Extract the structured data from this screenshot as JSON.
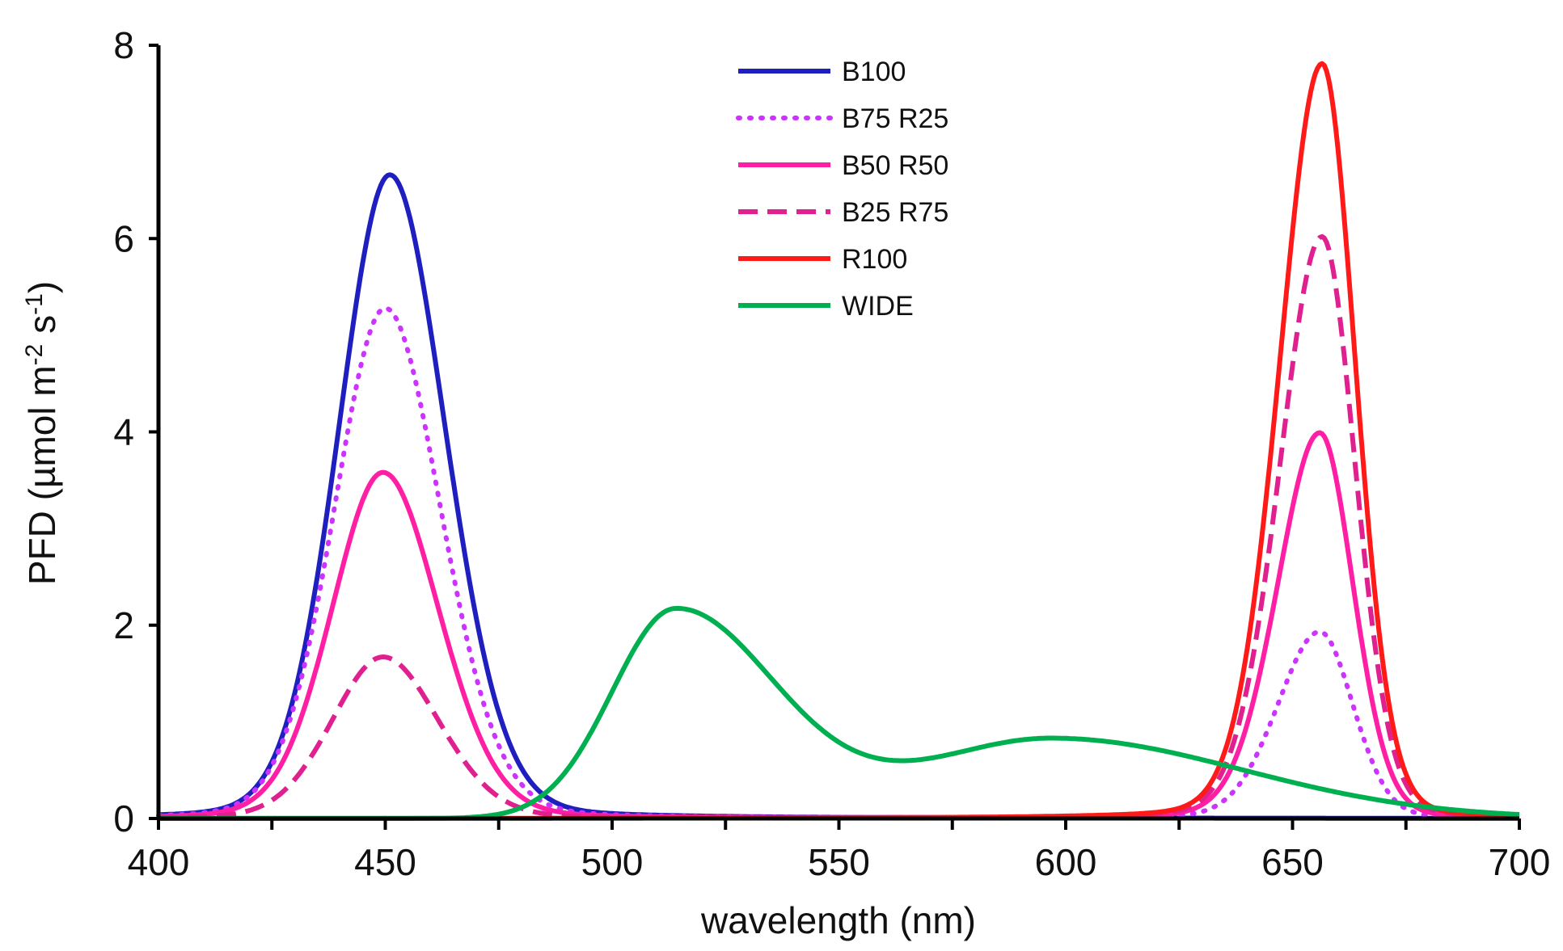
{
  "chart_data": {
    "type": "line",
    "title": "",
    "xlabel": "wavelength (nm)",
    "ylabel": "PFD (µmol m-2 s-1)",
    "ylabel_parts": {
      "base": "PFD (µmol m",
      "exp1": "-2",
      "mid": " s",
      "exp2": "-1",
      "end": ")"
    },
    "xlim": [
      400,
      700
    ],
    "ylim": [
      0,
      8
    ],
    "xticks": [
      400,
      450,
      500,
      550,
      600,
      650,
      700
    ],
    "xtick_labels": [
      "400",
      "450",
      "500",
      "550",
      "600",
      "650",
      "700"
    ],
    "yticks": [
      0,
      2,
      4,
      6,
      8
    ],
    "ytick_labels": [
      "0",
      "2",
      "4",
      "6",
      "8"
    ],
    "grid": false,
    "legend_position": "top-center",
    "series": [
      {
        "name": "B100",
        "color": "#1f1fbf",
        "dash": "solid",
        "components": [
          {
            "peak": 451,
            "amp": 6.66,
            "sigma_left": 11.5,
            "sigma_right": 12.5,
            "shape": "lorentz-gauss"
          }
        ]
      },
      {
        "name": "B75 R25",
        "color": "#cc33ff",
        "dash": "dotted",
        "components": [
          {
            "peak": 450,
            "amp": 5.28,
            "sigma_left": 11.5,
            "sigma_right": 12.5,
            "shape": "lorentz-gauss"
          },
          {
            "peak": 656,
            "amp": 1.93,
            "sigma_left": 9.5,
            "sigma_right": 7.5,
            "shape": "lorentz-gauss"
          }
        ]
      },
      {
        "name": "B50 R50",
        "color": "#ff1fa5",
        "dash": "solid",
        "components": [
          {
            "peak": 449.5,
            "amp": 3.58,
            "sigma_left": 11.5,
            "sigma_right": 12.5,
            "shape": "lorentz-gauss"
          },
          {
            "peak": 656,
            "amp": 3.99,
            "sigma_left": 9.5,
            "sigma_right": 7.5,
            "shape": "lorentz-gauss"
          }
        ]
      },
      {
        "name": "B25 R75",
        "color": "#e0208f",
        "dash": "dashed",
        "components": [
          {
            "peak": 449.5,
            "amp": 1.67,
            "sigma_left": 11.5,
            "sigma_right": 12.5,
            "shape": "lorentz-gauss"
          },
          {
            "peak": 656.5,
            "amp": 6.02,
            "sigma_left": 9.5,
            "sigma_right": 7.5,
            "shape": "lorentz-gauss"
          }
        ]
      },
      {
        "name": "R100",
        "color": "#ff1a1a",
        "dash": "solid",
        "components": [
          {
            "peak": 656.5,
            "amp": 7.81,
            "sigma_left": 9.5,
            "sigma_right": 7.5,
            "shape": "lorentz-gauss"
          }
        ]
      },
      {
        "name": "WIDE",
        "color": "#00b050",
        "dash": "solid",
        "components": [
          {
            "peak": 514,
            "amp": 2.16,
            "sigma_left": 14,
            "sigma_right": 22,
            "shape": "gauss"
          },
          {
            "peak": 597,
            "amp": 0.83,
            "sigma_left": 29,
            "sigma_right": 42,
            "shape": "gauss"
          }
        ]
      }
    ]
  }
}
